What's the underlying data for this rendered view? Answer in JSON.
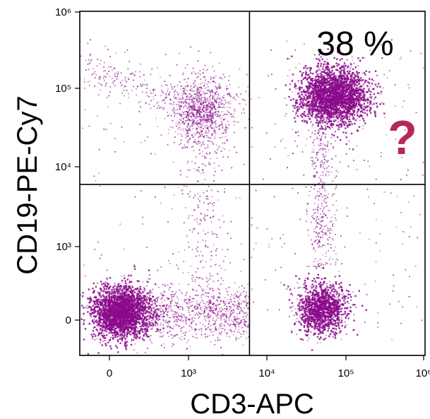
{
  "chart_data": {
    "type": "scatter",
    "title": "",
    "xlabel": "CD3-APC",
    "ylabel": "CD19-PE-Cy7",
    "x_scale": "biexponential",
    "y_scale": "biexponential",
    "x_ticks": [
      {
        "value": 0,
        "label": "0"
      },
      {
        "value": 1000,
        "label": "10³"
      },
      {
        "value": 10000,
        "label": "10⁴"
      },
      {
        "value": 100000,
        "label": "10⁵"
      },
      {
        "value": 1000000,
        "label": "10⁶"
      }
    ],
    "y_ticks": [
      {
        "value": 0,
        "label": "0"
      },
      {
        "value": 1000,
        "label": "10³"
      },
      {
        "value": 10000,
        "label": "10⁴"
      },
      {
        "value": 100000,
        "label": "10⁵"
      },
      {
        "value": 1000000,
        "label": "10⁶"
      }
    ],
    "quadrant_gate": {
      "x": 6000,
      "y": 6000
    },
    "annotations": [
      {
        "text": "38 %",
        "quadrant": "upper-right"
      },
      {
        "text": "?",
        "quadrant": "upper-right",
        "color": "#b5285a"
      }
    ],
    "point_color": "#8b0a8b",
    "populations": [
      {
        "region": "lower-left",
        "x_center": 150,
        "y_center": 100
      },
      {
        "region": "lower-right",
        "x_center": 50000,
        "y_center": 150
      },
      {
        "region": "upper-left",
        "x_center": 1500,
        "y_center": 50000
      },
      {
        "region": "upper-right",
        "x_center": 70000,
        "y_center": 80000
      }
    ]
  }
}
